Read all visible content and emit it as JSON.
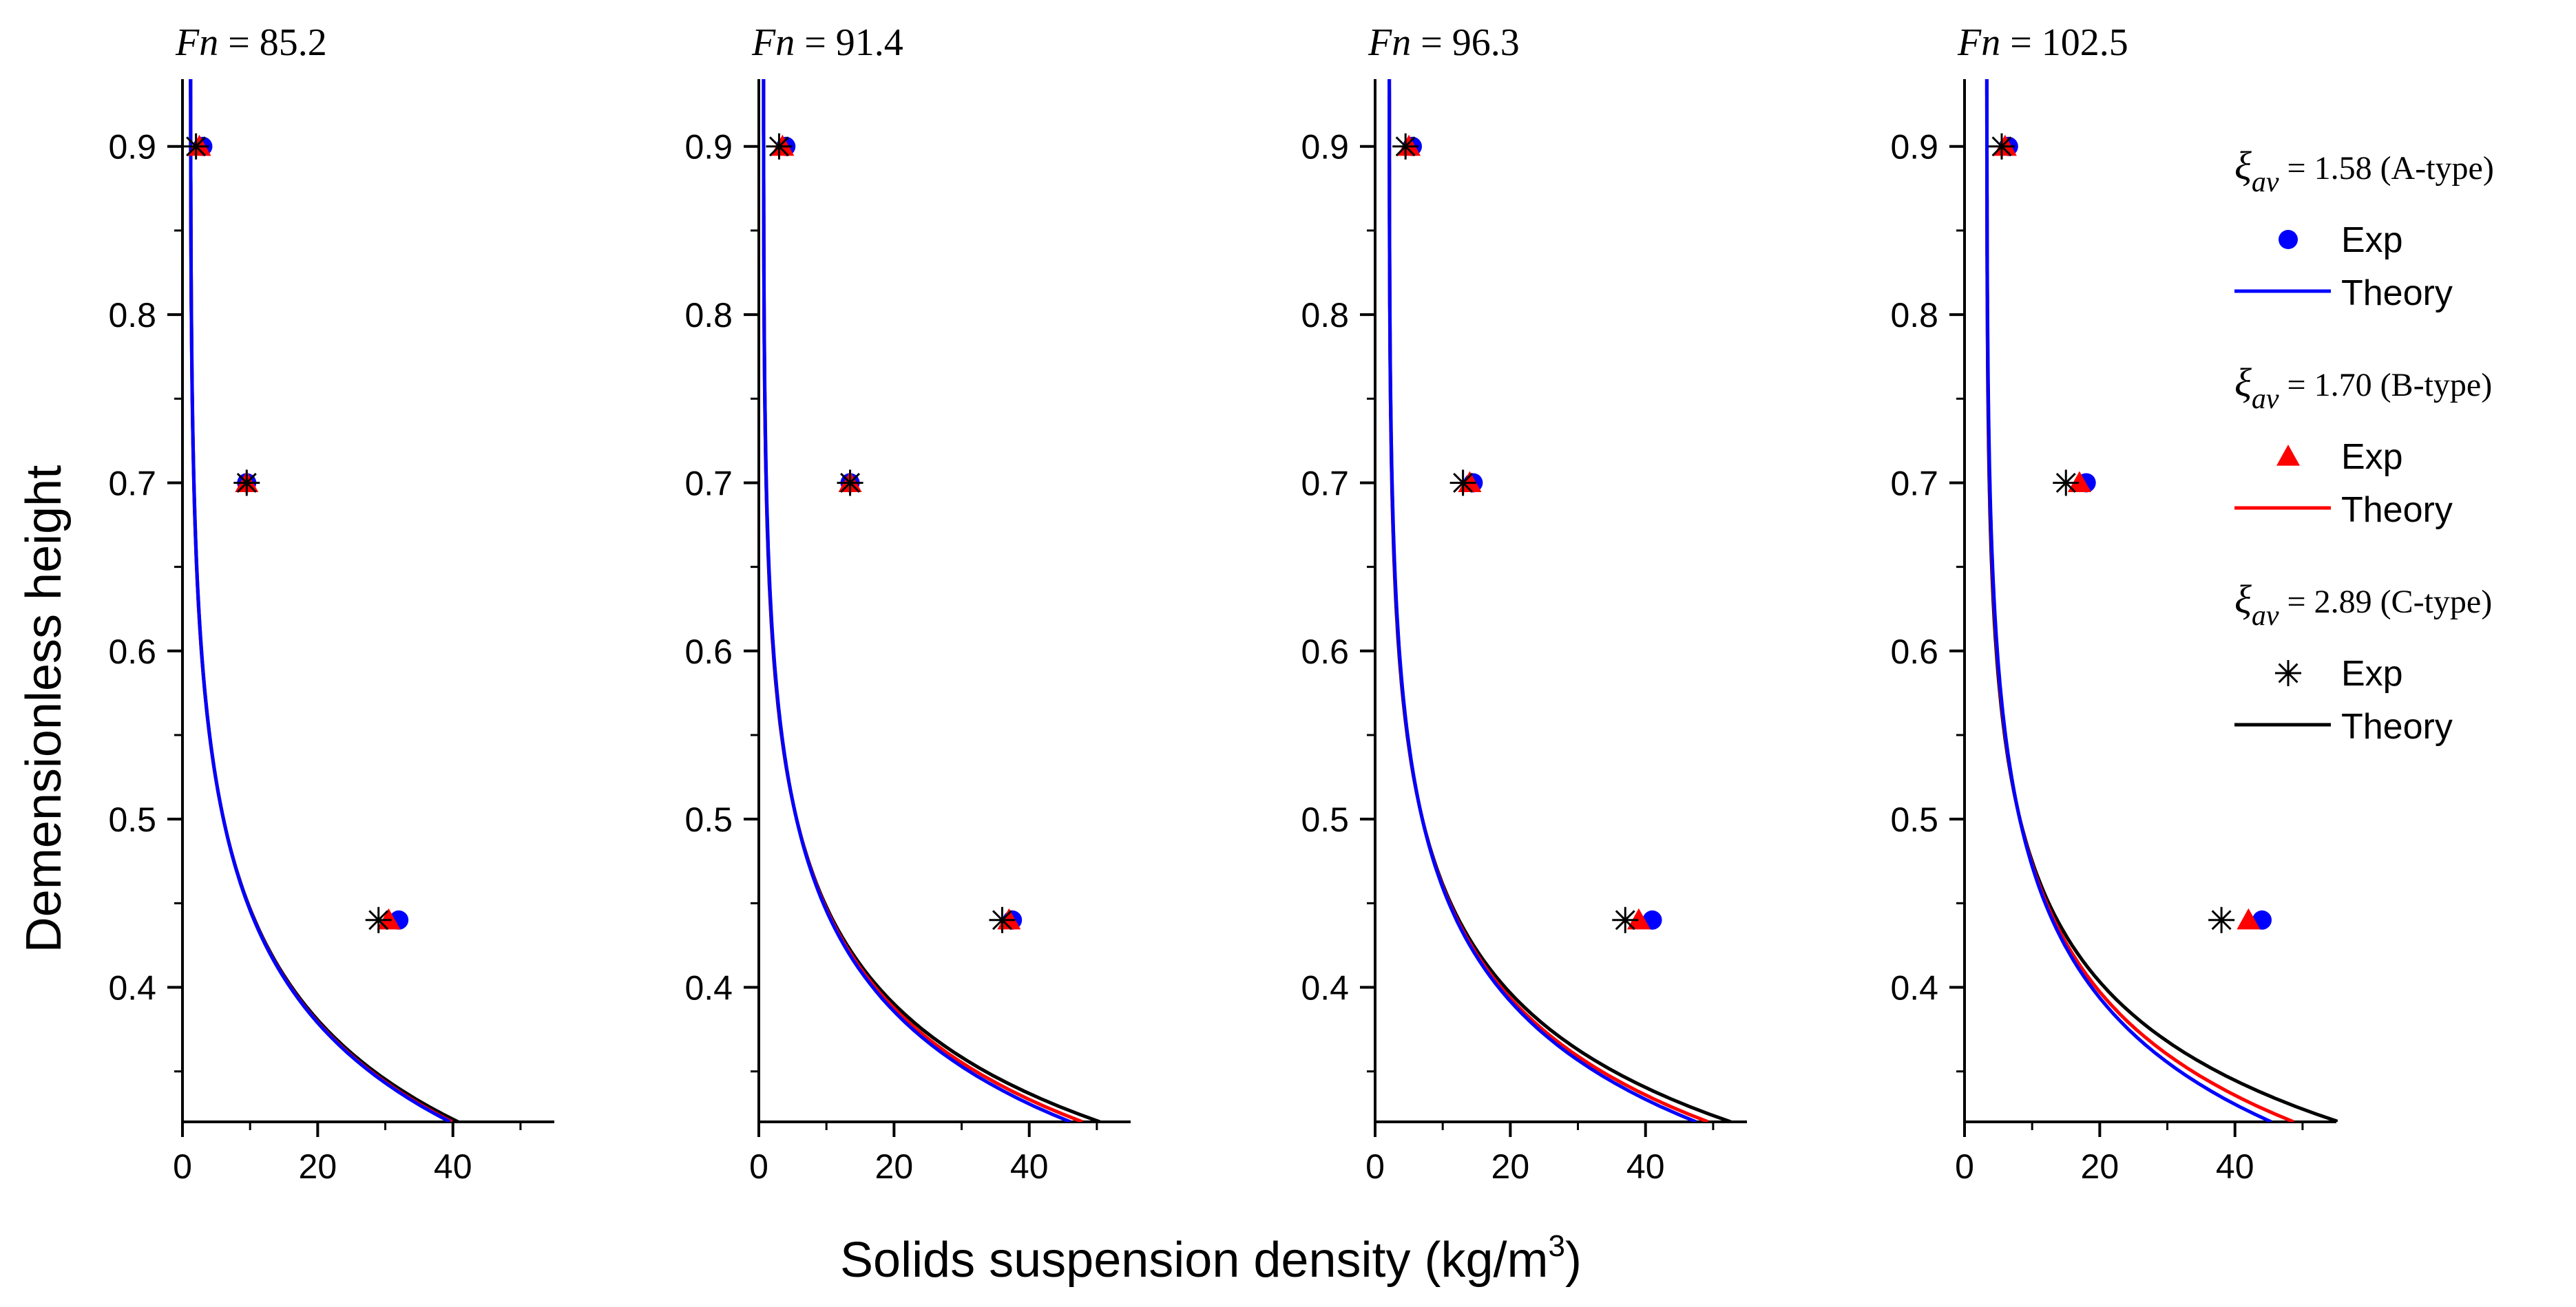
{
  "chart_data": {
    "type": "line",
    "xlabel": "Solids suspension density (kg/m",
    "xlabel_sup": "3",
    "xlabel_end": ")",
    "ylabel": "Demensionless height",
    "xlim": [
      0,
      55
    ],
    "ylim": [
      0.32,
      0.94
    ],
    "x_ticks": [
      0,
      20,
      40
    ],
    "y_ticks": [
      0.4,
      0.5,
      0.6,
      0.7,
      0.8,
      0.9
    ],
    "x_tick_labels": [
      "0",
      "20",
      "40"
    ],
    "y_tick_labels": [
      "0.4",
      "0.5",
      "0.6",
      "0.7",
      "0.8",
      "0.9"
    ],
    "legend": {
      "groups": [
        {
          "symbol": "ξ",
          "sub": "av",
          "value": " = 1.58 (A-type)",
          "exp_label": "Exp",
          "theory_label": "Theory",
          "color": "#0000ff",
          "marker": "circle"
        },
        {
          "symbol": "ξ",
          "sub": "av",
          "value": " = 1.70 (B-type)",
          "exp_label": "Exp",
          "theory_label": "Theory",
          "color": "#ff0000",
          "marker": "triangle"
        },
        {
          "symbol": "ξ",
          "sub": "av",
          "value": " = 2.89 (C-type)",
          "exp_label": "Exp",
          "theory_label": "Theory",
          "color": "#000000",
          "marker": "asterisk"
        }
      ]
    },
    "panels": [
      {
        "title_var": "Fn",
        "title_value": " = 85.2",
        "series": [
          {
            "name": "A-type",
            "exp": [
              [
                3,
                0.9
              ],
              [
                9.5,
                0.7
              ],
              [
                32,
                0.44
              ]
            ],
            "theory_k": [
              1.7,
              2.78
            ]
          },
          {
            "name": "B-type",
            "exp": [
              [
                2.5,
                0.9
              ],
              [
                9.5,
                0.7
              ],
              [
                30.5,
                0.44
              ]
            ],
            "theory_k": [
              1.7,
              2.79
            ]
          },
          {
            "name": "C-type",
            "exp": [
              [
                2,
                0.9
              ],
              [
                9.5,
                0.7
              ],
              [
                29,
                0.44
              ]
            ],
            "theory_k": [
              1.7,
              2.82
            ]
          }
        ]
      },
      {
        "title_var": "Fn",
        "title_value": " = 91.4",
        "series": [
          {
            "name": "A-type",
            "exp": [
              [
                4,
                0.9
              ],
              [
                13.5,
                0.7
              ],
              [
                37.5,
                0.44
              ]
            ],
            "theory_k": [
              1.2,
              3.0
            ]
          },
          {
            "name": "B-type",
            "exp": [
              [
                3.5,
                0.9
              ],
              [
                13.5,
                0.7
              ],
              [
                37,
                0.44
              ]
            ],
            "theory_k": [
              1.2,
              3.05
            ]
          },
          {
            "name": "C-type",
            "exp": [
              [
                3,
                0.9
              ],
              [
                13.5,
                0.7
              ],
              [
                36,
                0.44
              ]
            ],
            "theory_k": [
              1.2,
              3.12
            ]
          }
        ]
      },
      {
        "title_var": "Fn",
        "title_value": " = 96.3",
        "series": [
          {
            "name": "A-type",
            "exp": [
              [
                5.5,
                0.9
              ],
              [
                14.5,
                0.7
              ],
              [
                41,
                0.44
              ]
            ],
            "theory_k": [
              2.6,
              3.0
            ]
          },
          {
            "name": "B-type",
            "exp": [
              [
                5,
                0.9
              ],
              [
                14,
                0.7
              ],
              [
                39,
                0.44
              ]
            ],
            "theory_k": [
              2.6,
              3.05
            ]
          },
          {
            "name": "C-type",
            "exp": [
              [
                4.5,
                0.9
              ],
              [
                13,
                0.7
              ],
              [
                37,
                0.44
              ]
            ],
            "theory_k": [
              2.6,
              3.14
            ]
          }
        ]
      },
      {
        "title_var": "Fn",
        "title_value": " = 102.5",
        "series": [
          {
            "name": "A-type",
            "exp": [
              [
                6.5,
                0.9
              ],
              [
                18,
                0.7
              ],
              [
                44,
                0.44
              ]
            ],
            "theory_k": [
              3.8,
              2.9
            ]
          },
          {
            "name": "B-type",
            "exp": [
              [
                6,
                0.9
              ],
              [
                17,
                0.7
              ],
              [
                42,
                0.44
              ]
            ],
            "theory_k": [
              3.8,
              3.0
            ]
          },
          {
            "name": "C-type",
            "exp": [
              [
                5.5,
                0.9
              ],
              [
                15,
                0.7
              ],
              [
                38,
                0.44
              ]
            ],
            "theory_k": [
              3.8,
              3.18
            ]
          }
        ]
      }
    ]
  }
}
